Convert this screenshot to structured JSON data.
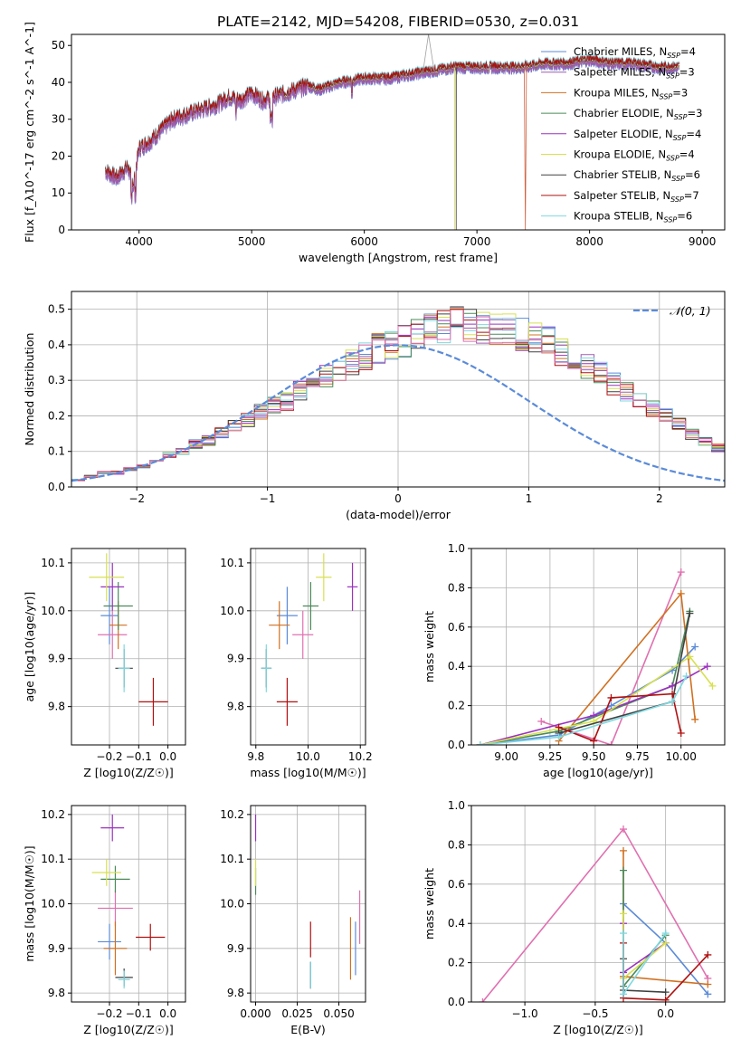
{
  "title": "PLATE=2142, MJD=54208, FIBERID=0530, z=0.031",
  "chart_data": [
    {
      "id": "spectrum",
      "type": "line",
      "xlabel": "wavelength [Angstrom, rest frame]",
      "ylabel": "Flux [f_λ10^-17 erg cm^-2 s^-1 A^-1]",
      "xlim": [
        3400,
        9200
      ],
      "ylim": [
        0,
        53
      ],
      "xticks": [
        4000,
        5000,
        6000,
        7000,
        8000,
        9000
      ],
      "yticks": [
        0,
        10,
        20,
        30,
        40,
        50
      ],
      "grid": false,
      "legend_placement": "top-right",
      "x": [
        3700,
        3800,
        3900,
        3950,
        4000,
        4100,
        4200,
        4300,
        4400,
        4500,
        4600,
        4700,
        4800,
        4900,
        5000,
        5100,
        5200,
        5300,
        5400,
        5500,
        5600,
        5800,
        6000,
        6200,
        6400,
        6600,
        6800,
        7000,
        7200,
        7400,
        7600,
        7800,
        8000,
        8200,
        8400,
        8600,
        8800
      ],
      "y": [
        16,
        14,
        17,
        12,
        22,
        24,
        27,
        30,
        31,
        32,
        33,
        34,
        36,
        35,
        37,
        35,
        36,
        37,
        38,
        39,
        38,
        40,
        41,
        41,
        42,
        43,
        44,
        44,
        44,
        44,
        45,
        45,
        46,
        45,
        45,
        44,
        44
      ],
      "series": [
        {
          "label": "Chabrier MILES, N_SSP=4",
          "color": "#5b8bd8"
        },
        {
          "label": "Salpeter MILES, N_SSP=3",
          "color": "#a05ab0"
        },
        {
          "label": "Kroupa MILES, N_SSP=3",
          "color": "#d07020"
        },
        {
          "label": "Chabrier ELODIE, N_SSP=3",
          "color": "#4a8a5a"
        },
        {
          "label": "Salpeter ELODIE, N_SSP=4",
          "color": "#9b30c0"
        },
        {
          "label": "Kroupa ELODIE, N_SSP=4",
          "color": "#d8e050"
        },
        {
          "label": "Chabrier STELIB, N_SSP=6",
          "color": "#404040"
        },
        {
          "label": "Salpeter STELIB, N_SSP=7",
          "color": "#b01010"
        },
        {
          "label": "Kroupa STELIB, N_SSP=6",
          "color": "#80d8e0"
        }
      ]
    },
    {
      "id": "residuals",
      "type": "histogram",
      "xlabel": "(data-model)/error",
      "ylabel": "Normed distribution",
      "xlim": [
        -2.5,
        2.5
      ],
      "ylim": [
        0,
        0.55
      ],
      "xticks": [
        -2,
        -1,
        0,
        1,
        2
      ],
      "yticks": [
        0.0,
        0.1,
        0.2,
        0.3,
        0.4,
        0.5
      ],
      "grid": true,
      "legend": "𝒩(0, 1)",
      "legend_placement": "top-right",
      "bin_width": 0.1,
      "bin_start": -2.5,
      "base_density": [
        0.02,
        0.03,
        0.04,
        0.04,
        0.05,
        0.06,
        0.07,
        0.09,
        0.1,
        0.12,
        0.13,
        0.15,
        0.17,
        0.19,
        0.21,
        0.23,
        0.24,
        0.27,
        0.29,
        0.31,
        0.33,
        0.35,
        0.37,
        0.39,
        0.4,
        0.41,
        0.43,
        0.44,
        0.45,
        0.46,
        0.46,
        0.45,
        0.44,
        0.44,
        0.43,
        0.42,
        0.41,
        0.38,
        0.36,
        0.34,
        0.32,
        0.29,
        0.27,
        0.25,
        0.22,
        0.2,
        0.18,
        0.15,
        0.13,
        0.11,
        0.09
      ]
    },
    {
      "id": "age-vs-Z",
      "type": "errorbar",
      "xlabel": "Z [log10(Z/Z☉)]",
      "ylabel": "age  [log10(age/yr)]",
      "xlim": [
        -0.33,
        0.06
      ],
      "ylim": [
        9.72,
        10.13
      ],
      "xticks": [
        -0.2,
        -0.1,
        0.0
      ],
      "yticks": [
        9.8,
        9.9,
        10.0,
        10.1
      ],
      "points": [
        {
          "x": -0.2,
          "y": 9.99,
          "xerr": 0.03,
          "yerr": 0.06,
          "color": "#5b8bd8"
        },
        {
          "x": -0.19,
          "y": 9.95,
          "xerr": 0.05,
          "yerr": 0.05,
          "color": "#e070b0"
        },
        {
          "x": -0.17,
          "y": 9.97,
          "xerr": 0.03,
          "yerr": 0.05,
          "color": "#d07020"
        },
        {
          "x": -0.17,
          "y": 10.01,
          "xerr": 0.05,
          "yerr": 0.05,
          "color": "#4a8a5a"
        },
        {
          "x": -0.19,
          "y": 10.05,
          "xerr": 0.04,
          "yerr": 0.05,
          "color": "#9b30c0"
        },
        {
          "x": -0.21,
          "y": 10.07,
          "xerr": 0.06,
          "yerr": 0.05,
          "color": "#d8e050"
        },
        {
          "x": -0.15,
          "y": 9.88,
          "xerr": 0.03,
          "yerr": 0.04,
          "color": "#404040"
        },
        {
          "x": -0.05,
          "y": 9.81,
          "xerr": 0.05,
          "yerr": 0.05,
          "color": "#b01010"
        },
        {
          "x": -0.15,
          "y": 9.88,
          "xerr": 0.02,
          "yerr": 0.05,
          "color": "#80d8e0"
        }
      ]
    },
    {
      "id": "age-vs-mass",
      "type": "errorbar",
      "xlabel": "mass [log10(M/M☉)]",
      "ylabel": "",
      "xlim": [
        9.78,
        10.22
      ],
      "ylim": [
        9.72,
        10.13
      ],
      "xticks": [
        9.8,
        10.0,
        10.2
      ],
      "yticks": [
        9.8,
        9.9,
        10.0,
        10.1
      ],
      "points": [
        {
          "x": 9.92,
          "y": 9.99,
          "xerr": 0.04,
          "yerr": 0.06,
          "color": "#5b8bd8"
        },
        {
          "x": 9.98,
          "y": 9.95,
          "xerr": 0.04,
          "yerr": 0.05,
          "color": "#e070b0"
        },
        {
          "x": 9.89,
          "y": 9.97,
          "xerr": 0.04,
          "yerr": 0.05,
          "color": "#d07020"
        },
        {
          "x": 10.01,
          "y": 10.01,
          "xerr": 0.03,
          "yerr": 0.05,
          "color": "#4a8a5a"
        },
        {
          "x": 10.17,
          "y": 10.05,
          "xerr": 0.02,
          "yerr": 0.05,
          "color": "#9b30c0"
        },
        {
          "x": 10.06,
          "y": 10.07,
          "xerr": 0.03,
          "yerr": 0.05,
          "color": "#d8e050"
        },
        {
          "x": 9.84,
          "y": 9.88,
          "xerr": 0.02,
          "yerr": 0.04,
          "color": "#404040"
        },
        {
          "x": 9.92,
          "y": 9.81,
          "xerr": 0.04,
          "yerr": 0.05,
          "color": "#b01010"
        },
        {
          "x": 9.84,
          "y": 9.88,
          "xerr": 0.02,
          "yerr": 0.05,
          "color": "#80d8e0"
        }
      ]
    },
    {
      "id": "weight-vs-age",
      "type": "line",
      "xlabel": "age  [log10(age/yr)]",
      "ylabel": "mass weight",
      "xlim": [
        8.8,
        10.25
      ],
      "ylim": [
        0,
        1
      ],
      "xticks": [
        9.0,
        9.25,
        9.5,
        9.75,
        10.0
      ],
      "yticks": [
        0.0,
        0.2,
        0.4,
        0.6,
        0.8,
        1.0
      ],
      "grid": true,
      "series": [
        {
          "color": "#5b8bd8",
          "x": [
            8.85,
            9.3,
            9.6,
            9.95,
            10.08
          ],
          "y": [
            0.0,
            0.05,
            0.2,
            0.38,
            0.5
          ]
        },
        {
          "color": "#e070b0",
          "x": [
            9.2,
            9.6,
            10.0
          ],
          "y": [
            0.12,
            0.0,
            0.88
          ]
        },
        {
          "color": "#d07020",
          "x": [
            9.3,
            10.0,
            10.08
          ],
          "y": [
            0.02,
            0.77,
            0.13
          ]
        },
        {
          "color": "#4a8a5a",
          "x": [
            8.85,
            9.3,
            9.95,
            10.05
          ],
          "y": [
            0.0,
            0.07,
            0.3,
            0.68
          ]
        },
        {
          "color": "#9b30c0",
          "x": [
            8.85,
            9.5,
            9.95,
            10.15
          ],
          "y": [
            0.0,
            0.15,
            0.3,
            0.4
          ]
        },
        {
          "color": "#d8e050",
          "x": [
            8.85,
            9.5,
            10.05,
            10.18
          ],
          "y": [
            0.0,
            0.12,
            0.45,
            0.3
          ]
        },
        {
          "color": "#404040",
          "x": [
            9.3,
            9.95,
            10.05
          ],
          "y": [
            0.06,
            0.22,
            0.67
          ]
        },
        {
          "color": "#b01010",
          "x": [
            9.3,
            9.5,
            9.6,
            9.95,
            10.0
          ],
          "y": [
            0.09,
            0.02,
            0.24,
            0.26,
            0.06
          ]
        },
        {
          "color": "#80d8e0",
          "x": [
            8.85,
            9.3,
            9.95,
            10.03
          ],
          "y": [
            0.0,
            0.04,
            0.22,
            0.35
          ]
        }
      ]
    },
    {
      "id": "mass-vs-Z",
      "type": "errorbar",
      "xlabel": "Z [log10(Z/Z☉)]",
      "ylabel": "mass [log10(M/M☉)]",
      "xlim": [
        -0.33,
        0.06
      ],
      "ylim": [
        9.78,
        10.22
      ],
      "xticks": [
        -0.2,
        -0.1,
        0.0
      ],
      "yticks": [
        9.8,
        9.9,
        10.0,
        10.1,
        10.2
      ],
      "points": [
        {
          "x": -0.2,
          "y": 9.915,
          "xerr": 0.04,
          "yerr": 0.04,
          "color": "#5b8bd8"
        },
        {
          "x": -0.18,
          "y": 9.99,
          "xerr": 0.06,
          "yerr": 0.04,
          "color": "#e070b0"
        },
        {
          "x": -0.18,
          "y": 9.9,
          "xerr": 0.04,
          "yerr": 0.06,
          "color": "#d07020"
        },
        {
          "x": -0.18,
          "y": 10.055,
          "xerr": 0.05,
          "yerr": 0.03,
          "color": "#4a8a5a"
        },
        {
          "x": -0.19,
          "y": 10.17,
          "xerr": 0.04,
          "yerr": 0.03,
          "color": "#9b30c0"
        },
        {
          "x": -0.21,
          "y": 10.07,
          "xerr": 0.05,
          "yerr": 0.03,
          "color": "#d8e050"
        },
        {
          "x": -0.15,
          "y": 9.835,
          "xerr": 0.03,
          "yerr": 0.02,
          "color": "#404040"
        },
        {
          "x": -0.06,
          "y": 9.925,
          "xerr": 0.05,
          "yerr": 0.03,
          "color": "#b01010"
        },
        {
          "x": -0.15,
          "y": 9.83,
          "xerr": 0.02,
          "yerr": 0.02,
          "color": "#80d8e0"
        }
      ]
    },
    {
      "id": "mass-vs-ebv",
      "type": "errorbar",
      "xlabel": "E(B-V)",
      "ylabel": "",
      "xlim": [
        -0.003,
        0.066
      ],
      "ylim": [
        9.78,
        10.22
      ],
      "xticks": [
        0.0,
        0.025,
        0.05
      ],
      "yticks": [
        9.8,
        9.9,
        10.0,
        10.1,
        10.2
      ],
      "points": [
        {
          "x": 0.06,
          "y": 9.9,
          "yerr": 0.06,
          "color": "#5b8bd8"
        },
        {
          "x": 0.0625,
          "y": 9.97,
          "yerr": 0.06,
          "color": "#e070b0"
        },
        {
          "x": 0.057,
          "y": 9.9,
          "yerr": 0.07,
          "color": "#d07020"
        },
        {
          "x": 0.0,
          "y": 10.05,
          "yerr": 0.03,
          "color": "#4a8a5a"
        },
        {
          "x": 0.0,
          "y": 10.17,
          "yerr": 0.03,
          "color": "#9b30c0"
        },
        {
          "x": 0.0,
          "y": 10.07,
          "yerr": 0.03,
          "color": "#d8e050"
        },
        {
          "x": 0.033,
          "y": 9.84,
          "yerr": 0.03,
          "color": "#404040"
        },
        {
          "x": 0.033,
          "y": 9.92,
          "yerr": 0.04,
          "color": "#b01010"
        },
        {
          "x": 0.033,
          "y": 9.84,
          "yerr": 0.03,
          "color": "#80d8e0"
        }
      ]
    },
    {
      "id": "weight-vs-Z",
      "type": "line",
      "xlabel": "Z [log10(Z/Z☉)]",
      "ylabel": "mass weight",
      "xlim": [
        -1.38,
        0.42
      ],
      "ylim": [
        0,
        1
      ],
      "xticks": [
        -1.0,
        -0.5,
        0.0
      ],
      "yticks": [
        0.0,
        0.2,
        0.4,
        0.6,
        0.8,
        1.0
      ],
      "grid": true,
      "series": [
        {
          "color": "#5b8bd8",
          "x": [
            -0.3,
            0.0,
            0.3
          ],
          "y": [
            0.5,
            0.3,
            0.04
          ]
        },
        {
          "color": "#e070b0",
          "x": [
            -1.3,
            -0.3,
            0.3
          ],
          "y": [
            0.0,
            0.88,
            0.12
          ]
        },
        {
          "color": "#d07020",
          "x": [
            -0.3,
            -0.3,
            0.3
          ],
          "y": [
            0.77,
            0.13,
            0.09
          ]
        },
        {
          "color": "#4a8a5a",
          "x": [
            -0.3,
            -0.3,
            0.0
          ],
          "y": [
            0.67,
            0.08,
            0.34
          ]
        },
        {
          "color": "#9b30c0",
          "x": [
            -0.3,
            -0.3,
            0.0
          ],
          "y": [
            0.4,
            0.15,
            0.3
          ]
        },
        {
          "color": "#d8e050",
          "x": [
            -0.3,
            -0.3,
            0.0
          ],
          "y": [
            0.45,
            0.12,
            0.3
          ]
        },
        {
          "color": "#404040",
          "x": [
            -0.3,
            -0.3,
            0.0
          ],
          "y": [
            0.22,
            0.06,
            0.05
          ]
        },
        {
          "color": "#b01010",
          "x": [
            -0.3,
            -0.3,
            0.0,
            0.3
          ],
          "y": [
            0.3,
            0.02,
            0.01,
            0.24
          ]
        },
        {
          "color": "#80d8e0",
          "x": [
            -0.3,
            -0.3,
            0.0
          ],
          "y": [
            0.35,
            0.04,
            0.35
          ]
        }
      ]
    }
  ]
}
